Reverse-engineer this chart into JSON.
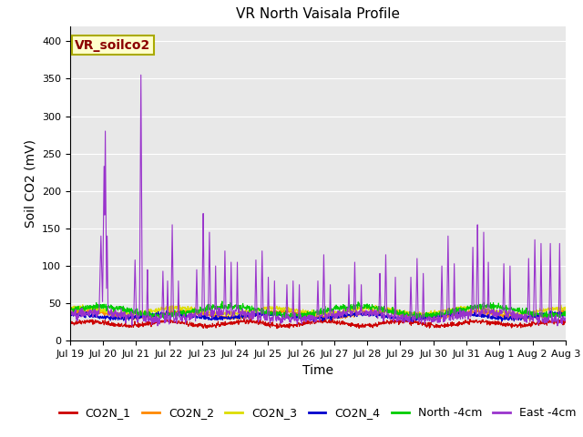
{
  "title": "VR North Vaisala Profile",
  "ylabel": "Soil CO2 (mV)",
  "xlabel": "Time",
  "annotation": "VR_soilco2",
  "x_tick_labels": [
    "Jul 19",
    "Jul 20",
    "Jul 21",
    "Jul 22",
    "Jul 23",
    "Jul 24",
    "Jul 25",
    "Jul 26",
    "Jul 27",
    "Jul 28",
    "Jul 29",
    "Jul 30",
    "Jul 31",
    "Aug 1",
    "Aug 2",
    "Aug 3"
  ],
  "ylim": [
    0,
    420
  ],
  "legend_labels": [
    "CO2N_1",
    "CO2N_2",
    "CO2N_3",
    "CO2N_4",
    "North -4cm",
    "East -4cm"
  ],
  "colors": {
    "CO2N_1": "#cc0000",
    "CO2N_2": "#ff8800",
    "CO2N_3": "#dddd00",
    "CO2N_4": "#0000cc",
    "North -4cm": "#00cc00",
    "East -4cm": "#9933cc"
  },
  "bg_color": "#e8e8e8",
  "title_fontsize": 11,
  "label_fontsize": 10,
  "tick_fontsize": 8,
  "annotation_fontsize": 10,
  "legend_fontsize": 9,
  "figsize": [
    6.4,
    4.8
  ],
  "dpi": 100
}
